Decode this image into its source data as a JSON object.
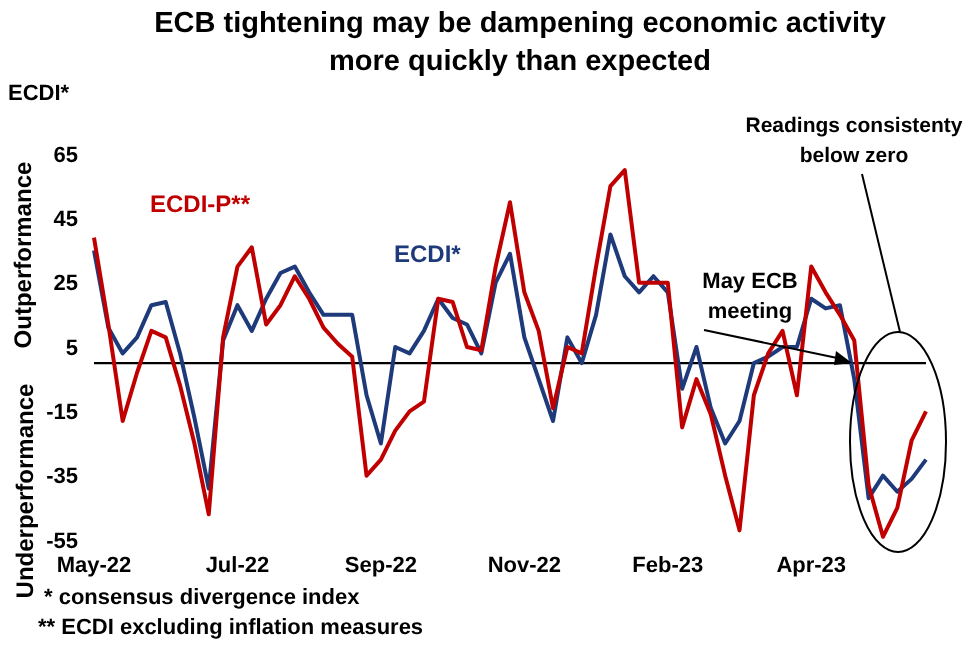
{
  "chart_data": {
    "type": "line",
    "title": "ECB tightening may be dampening economic activity more quickly than expected",
    "ylabel": "ECDI*",
    "categories": [
      "May-22",
      null,
      null,
      null,
      null,
      null,
      null,
      null,
      null,
      null,
      "Jul-22",
      null,
      null,
      null,
      null,
      null,
      null,
      null,
      null,
      null,
      "Sep-22",
      null,
      null,
      null,
      null,
      null,
      null,
      null,
      null,
      null,
      "Nov-22",
      null,
      null,
      null,
      null,
      null,
      null,
      null,
      null,
      null,
      "Feb-23",
      null,
      null,
      null,
      null,
      null,
      null,
      null,
      null,
      null,
      "Apr-23",
      null,
      null,
      null,
      null,
      null,
      null,
      null,
      null
    ],
    "series": [
      {
        "name": "ECDI*",
        "color": "#1f3a7a",
        "values": [
          35,
          11,
          3,
          8,
          18,
          19,
          3,
          -17,
          -39,
          7,
          18,
          10,
          20,
          28,
          30,
          22,
          15,
          15,
          15,
          -10,
          -25,
          5,
          3,
          10,
          20,
          14,
          12,
          3,
          25,
          34,
          8,
          -5,
          -18,
          8,
          0,
          15,
          40,
          27,
          22,
          27,
          22,
          -8,
          5,
          -14,
          -25,
          -18,
          0,
          2,
          5,
          5,
          20,
          17,
          18,
          -5,
          -42,
          -35,
          -40,
          -36,
          -30
        ]
      },
      {
        "name": "ECDI-P**",
        "color": "#c00000",
        "values": [
          39,
          12,
          -18,
          -3,
          10,
          8,
          -7,
          -25,
          -47,
          8,
          30,
          36,
          12,
          18,
          27,
          20,
          11,
          6,
          2,
          -35,
          -30,
          -21,
          -15,
          -12,
          20,
          19,
          5,
          4,
          30,
          50,
          22,
          10,
          -14,
          5,
          3,
          30,
          55,
          60,
          25,
          25,
          25,
          -20,
          -5,
          -16,
          -35,
          -52,
          -10,
          3,
          10,
          -10,
          30,
          22,
          15,
          7,
          -38,
          -54,
          -45,
          -24,
          -15
        ]
      }
    ],
    "ylim": [
      -55,
      65
    ],
    "yticks": [
      65,
      45,
      25,
      5,
      -15,
      -35,
      -55
    ],
    "grid": false,
    "legend": false,
    "marker": "none",
    "line_style": "solid",
    "ref_lines": [
      {
        "axis": "y",
        "value": 0,
        "color": "#000000"
      }
    ],
    "annotations": [
      "Outperformance",
      "Underperformance",
      {
        "text": "May ECB meeting",
        "y": 0
      },
      "Readings consistenty below zero",
      "* consensus divergence index",
      "** ECDI excluding inflation measures"
    ]
  }
}
